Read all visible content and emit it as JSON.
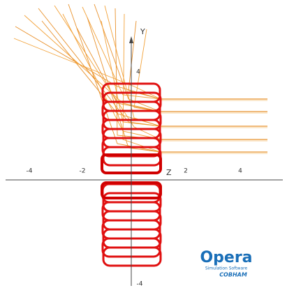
{
  "axes": {
    "y_label": "Y",
    "z_label": "Z",
    "horizontal_ticks": [
      "-4",
      "-2",
      "2",
      "4"
    ],
    "vertical_ticks": [
      "4",
      "-4"
    ]
  },
  "logo": {
    "name": "Opera",
    "tagline": "Simulation Software",
    "company": "COBHAM"
  }
}
